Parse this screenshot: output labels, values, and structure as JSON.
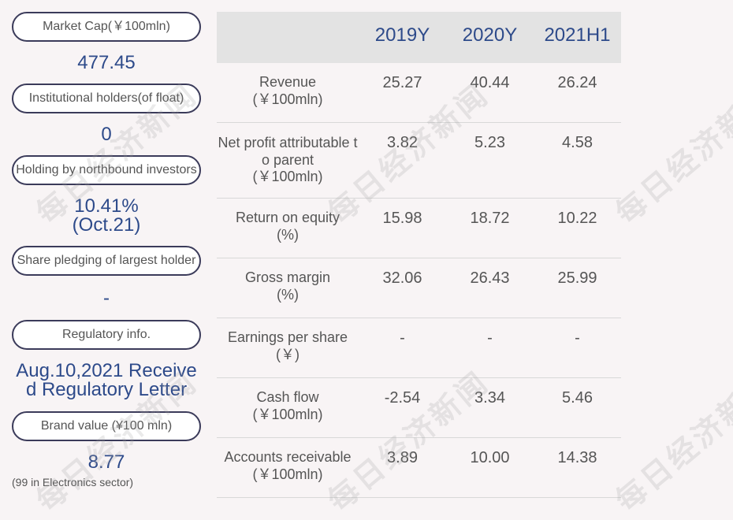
{
  "watermark": "每日经济新闻",
  "left_panel": [
    {
      "label": "Market Cap(￥100mln)",
      "value": "477.45"
    },
    {
      "label": "Institutional holders(of float)",
      "value": "0"
    },
    {
      "label": "Holding by northbound investors",
      "value_lines": [
        "10.41%",
        "(Oct.21)"
      ]
    },
    {
      "label": "Share pledging of largest holder",
      "value": "-"
    },
    {
      "label": "Regulatory info.",
      "value_lines": [
        "Aug.10,2021 Receive",
        "d Regulatory Letter"
      ]
    },
    {
      "label": "Brand value (¥100 mln)",
      "value": "8.77",
      "note": "(99 in Electronics sector)"
    }
  ],
  "table": {
    "columns": [
      "2019Y",
      "2020Y",
      "2021H1"
    ],
    "rows": [
      {
        "label": "Revenue",
        "unit": "(￥100mln)",
        "values": [
          "25.27",
          "40.44",
          "26.24"
        ]
      },
      {
        "label_lines": [
          "Net profit attributable t",
          "o parent"
        ],
        "unit": "(￥100mln)",
        "values": [
          "3.82",
          "5.23",
          "4.58"
        ]
      },
      {
        "label": "Return on equity",
        "unit": "(%)",
        "values": [
          "15.98",
          "18.72",
          "10.22"
        ]
      },
      {
        "label": "Gross margin",
        "unit": "(%)",
        "values": [
          "32.06",
          "26.43",
          "25.99"
        ]
      },
      {
        "label": "Earnings per share",
        "unit": "(￥)",
        "values": [
          "-",
          "-",
          "-"
        ]
      },
      {
        "label": "Cash flow",
        "unit": "(￥100mln)",
        "values": [
          "-2.54",
          "3.34",
          "5.46"
        ]
      },
      {
        "label": "Accounts receivable",
        "unit": "(￥100mln)",
        "values": [
          "3.89",
          "10.00",
          "14.38"
        ]
      }
    ]
  }
}
